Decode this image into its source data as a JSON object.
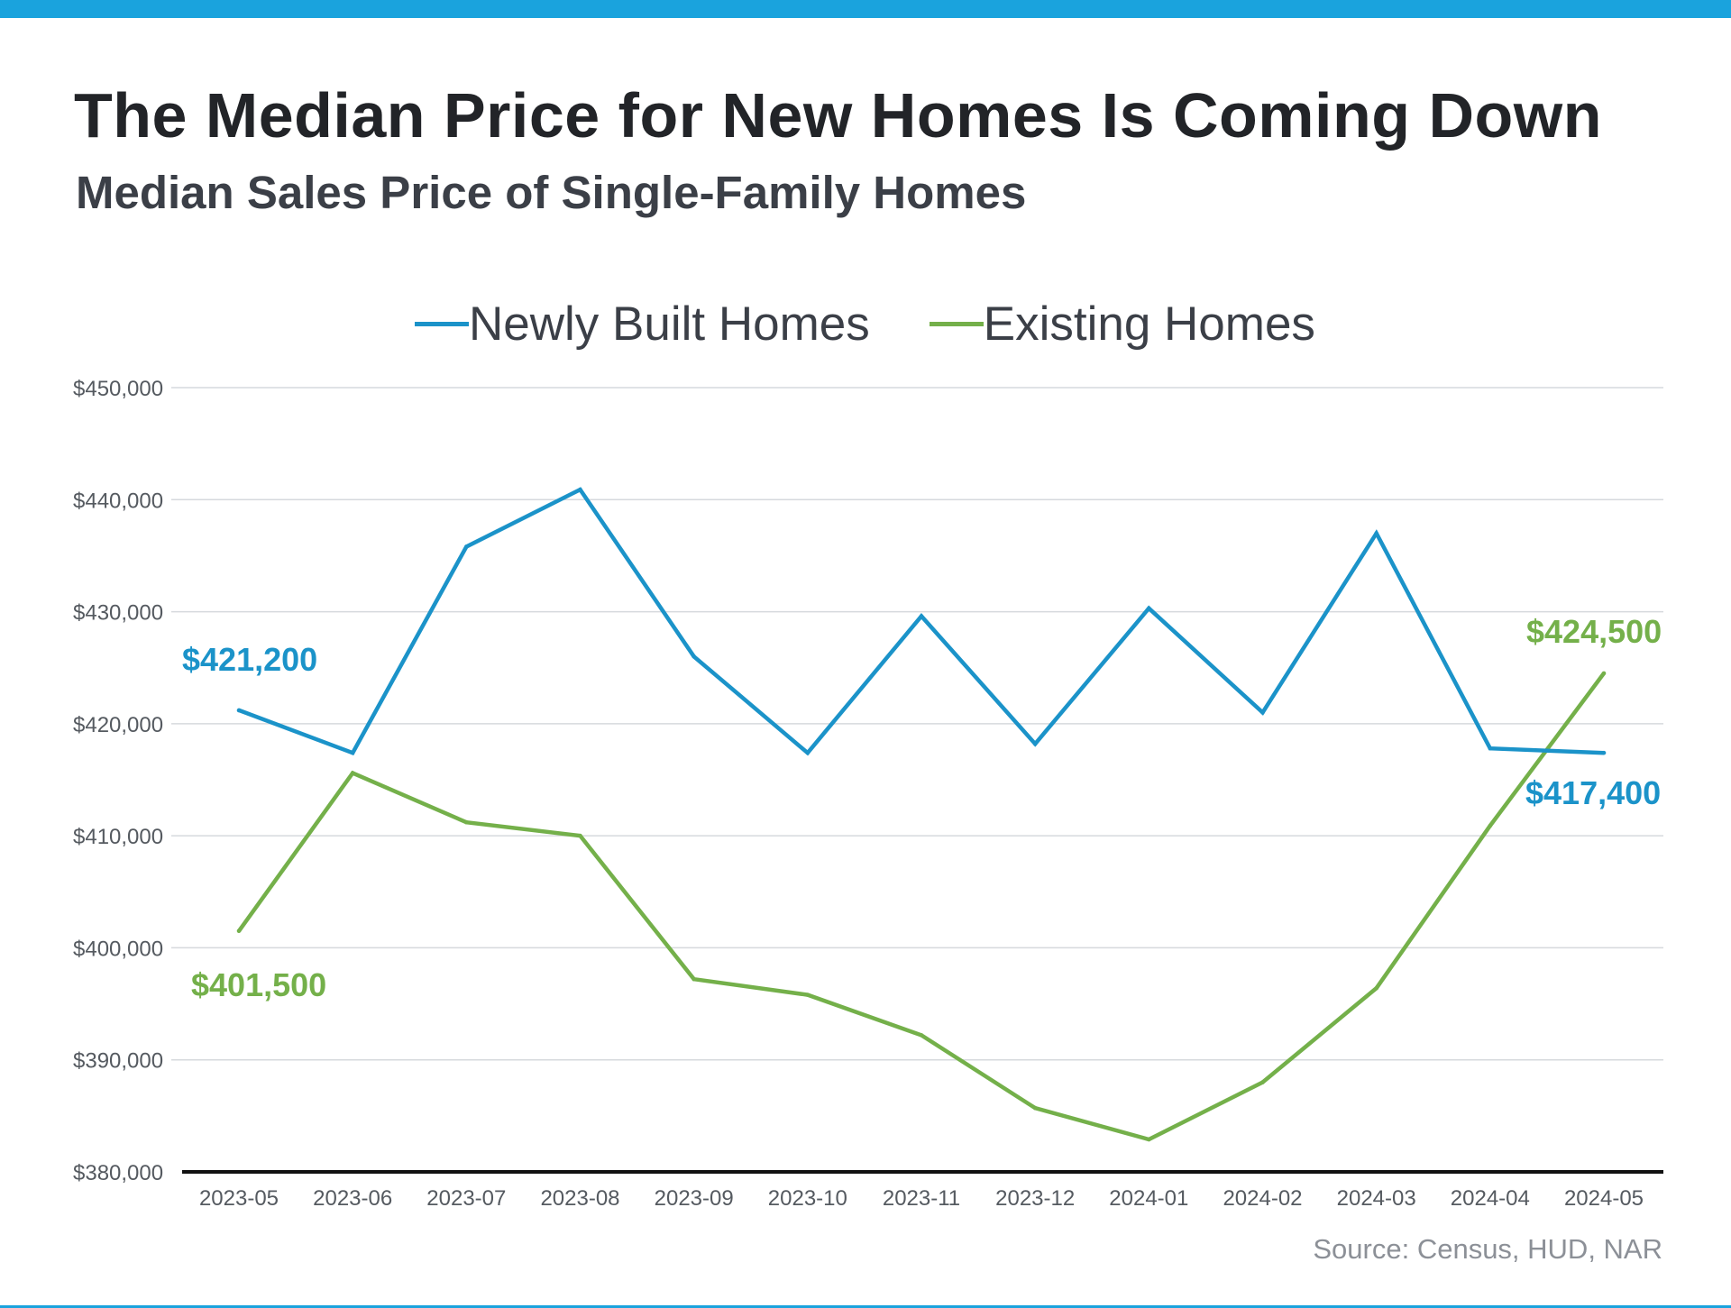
{
  "header": {
    "title": "The Median Price for New Homes Is Coming Down",
    "subtitle": "Median Sales Price of Single-Family Homes"
  },
  "source": "Source: Census, HUD, NAR",
  "colors": {
    "accent_bar": "#1aa3dd",
    "newly_built": "#1b93c9",
    "existing": "#74b04a",
    "grid": "#d6d9dd",
    "axis": "#111111",
    "tick_text": "#555a60"
  },
  "chart_data": {
    "type": "line",
    "title": "The Median Price for New Homes Is Coming Down",
    "subtitle": "Median Sales Price of Single-Family Homes",
    "xlabel": "",
    "ylabel": "",
    "categories": [
      "2023-05",
      "2023-06",
      "2023-07",
      "2023-08",
      "2023-09",
      "2023-10",
      "2023-11",
      "2023-12",
      "2024-01",
      "2024-02",
      "2024-03",
      "2024-04",
      "2024-05"
    ],
    "ylim": [
      380000,
      450000
    ],
    "yticks": [
      380000,
      390000,
      400000,
      410000,
      420000,
      430000,
      440000,
      450000
    ],
    "ytick_labels": [
      "$380,000",
      "$390,000",
      "$400,000",
      "$410,000",
      "$420,000",
      "$430,000",
      "$440,000",
      "$450,000"
    ],
    "grid": true,
    "legend_position": "top-center",
    "series": [
      {
        "name": "Newly Built Homes",
        "color": "#1b93c9",
        "values": [
          421200,
          417400,
          435800,
          440900,
          426000,
          417400,
          429600,
          418200,
          430300,
          421000,
          437000,
          417800,
          417400
        ]
      },
      {
        "name": "Existing Homes",
        "color": "#74b04a",
        "values": [
          401500,
          415600,
          411200,
          410000,
          397200,
          395800,
          392200,
          385700,
          382900,
          388000,
          396400,
          410900,
          424500
        ]
      }
    ],
    "annotations": [
      {
        "text": "$421,200",
        "series": 0,
        "index": 0
      },
      {
        "text": "$417,400",
        "series": 0,
        "index": 12
      },
      {
        "text": "$401,500",
        "series": 1,
        "index": 0
      },
      {
        "text": "$424,500",
        "series": 1,
        "index": 12
      }
    ]
  }
}
